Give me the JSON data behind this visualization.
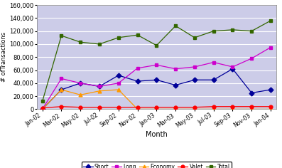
{
  "months": [
    "Jan-02",
    "Mar-02",
    "May-02",
    "Jul-02",
    "Sep-02",
    "Nov-02",
    "Jan-03",
    "Mar-03",
    "May-03",
    "Jul-03",
    "Sep-03",
    "Nov-03",
    "Jan-04"
  ],
  "short": [
    0,
    30000,
    40000,
    35000,
    52000,
    43000,
    45000,
    37000,
    45000,
    45000,
    62000,
    25000,
    30000
  ],
  "long": [
    0,
    47000,
    40000,
    35000,
    40000,
    63000,
    68000,
    62000,
    65000,
    72000,
    65000,
    78000,
    95000
  ],
  "economy": [
    0,
    30000,
    22000,
    28000,
    30000,
    0,
    0,
    0,
    0,
    0,
    0,
    0,
    0
  ],
  "valet": [
    2000,
    4000,
    3000,
    3000,
    3000,
    3000,
    3000,
    3000,
    3000,
    4000,
    4000,
    4000,
    4000
  ],
  "total": [
    12000,
    113000,
    103000,
    100000,
    110000,
    114000,
    98000,
    128000,
    110000,
    120000,
    122000,
    120000,
    136000
  ],
  "ylim": [
    0,
    160000
  ],
  "yticks": [
    0,
    20000,
    40000,
    60000,
    80000,
    100000,
    120000,
    140000,
    160000
  ],
  "ylabel": "# ofTransactions",
  "xlabel": "Month",
  "bg_color": "#cccce8",
  "outer_bg": "#ffffff",
  "short_color": "#000099",
  "long_color": "#cc00cc",
  "economy_color": "#ff9900",
  "valet_color": "#ff0000",
  "total_color": "#336600",
  "legend_labels": [
    "Short",
    "Long",
    "Economy",
    "Valet",
    "Total"
  ],
  "short_marker": "D",
  "long_marker": "s",
  "economy_marker": "^",
  "valet_marker": "o",
  "total_marker": "s"
}
